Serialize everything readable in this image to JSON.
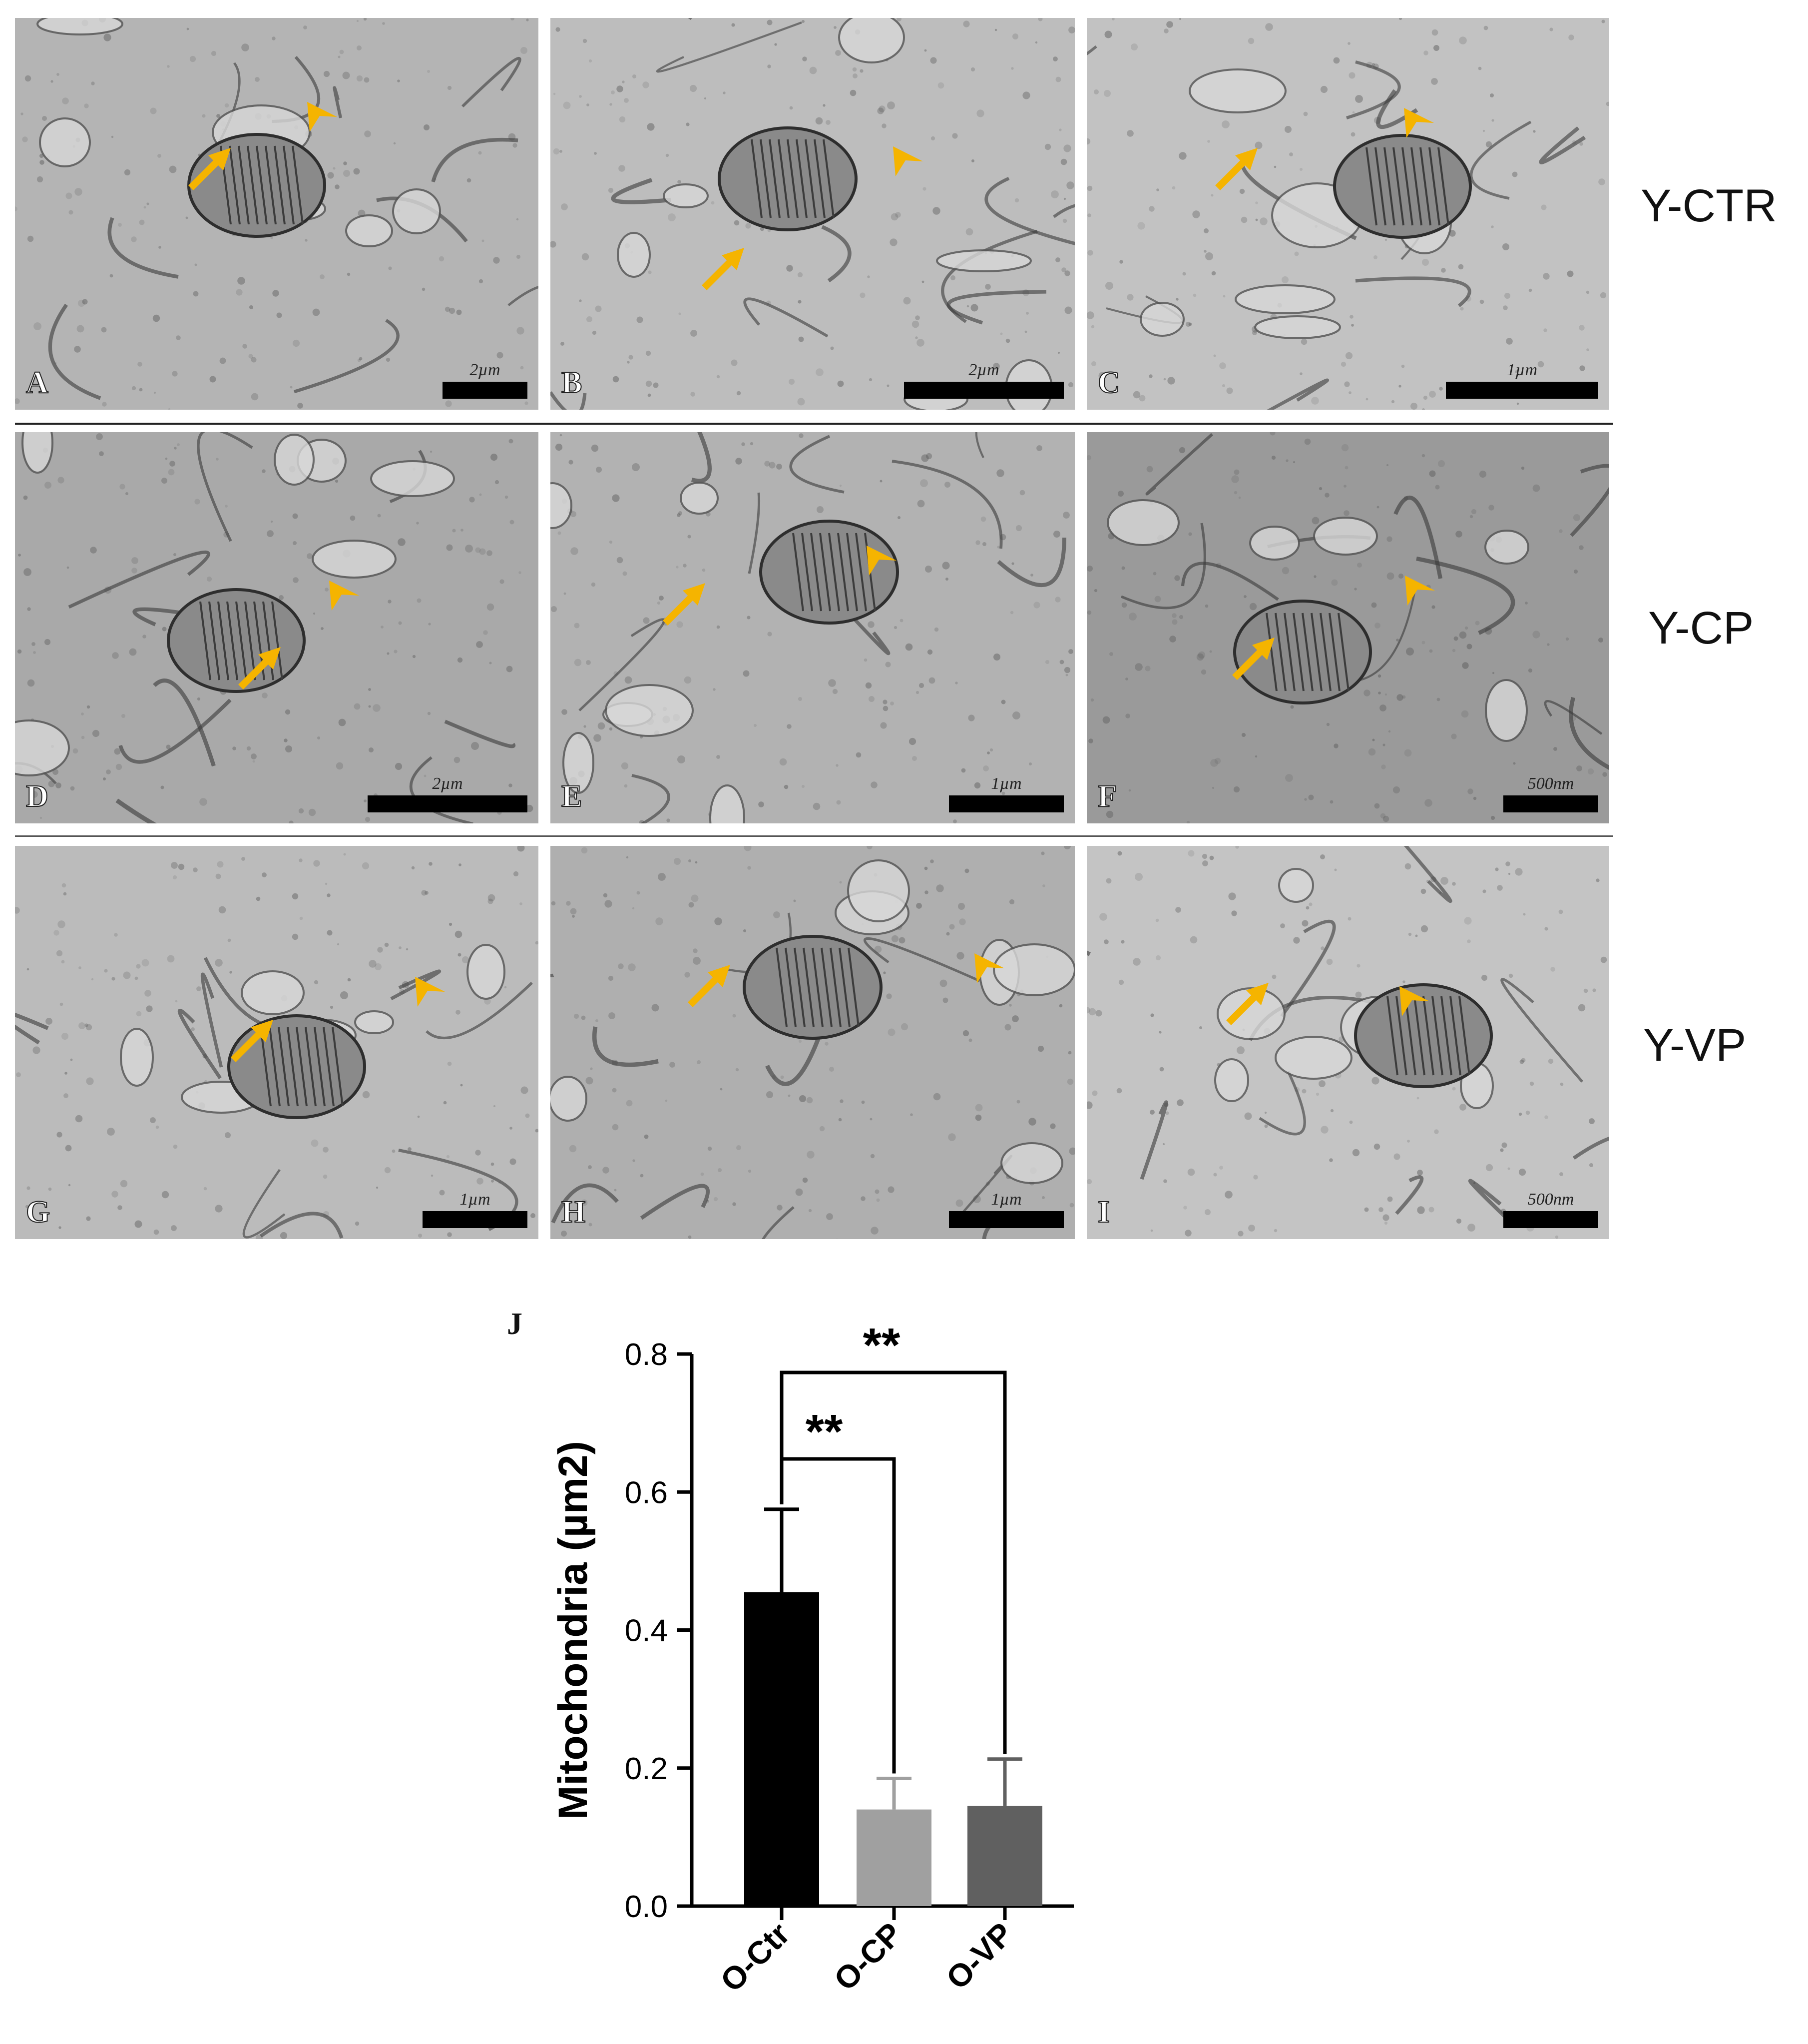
{
  "panels": [
    {
      "label": "A",
      "scale": "2µm"
    },
    {
      "label": "B",
      "scale": "2µm"
    },
    {
      "label": "C",
      "scale": "1µm"
    },
    {
      "label": "D",
      "scale": "2µm"
    },
    {
      "label": "E",
      "scale": "1µm"
    },
    {
      "label": "F",
      "scale": "500nm"
    },
    {
      "label": "G",
      "scale": "1µm"
    },
    {
      "label": "H",
      "scale": "1µm"
    },
    {
      "label": "I",
      "scale": "500nm"
    }
  ],
  "row_labels": [
    "Y-CTR",
    "Y-CP",
    "Y-VP"
  ],
  "colors": {
    "annotation": "#f5b400",
    "bar_ctr": "#000000",
    "bar_cp": "#a0a0a0",
    "bar_vp": "#606060"
  },
  "chart_data": {
    "type": "bar",
    "panel_label": "J",
    "categories": [
      "O-Ctr",
      "O-CP",
      "O-VP"
    ],
    "values": [
      0.455,
      0.14,
      0.145
    ],
    "errors": [
      0.12,
      0.045,
      0.068
    ],
    "ylabel": "Mitochondria (µm2)",
    "ylim": [
      0,
      0.8
    ],
    "yticks": [
      "0.0",
      "0.2",
      "0.4",
      "0.6",
      "0.8"
    ],
    "significance": [
      {
        "from": "O-Ctr",
        "to": "O-CP",
        "label": "**"
      },
      {
        "from": "O-Ctr",
        "to": "O-VP",
        "label": "**"
      }
    ]
  }
}
